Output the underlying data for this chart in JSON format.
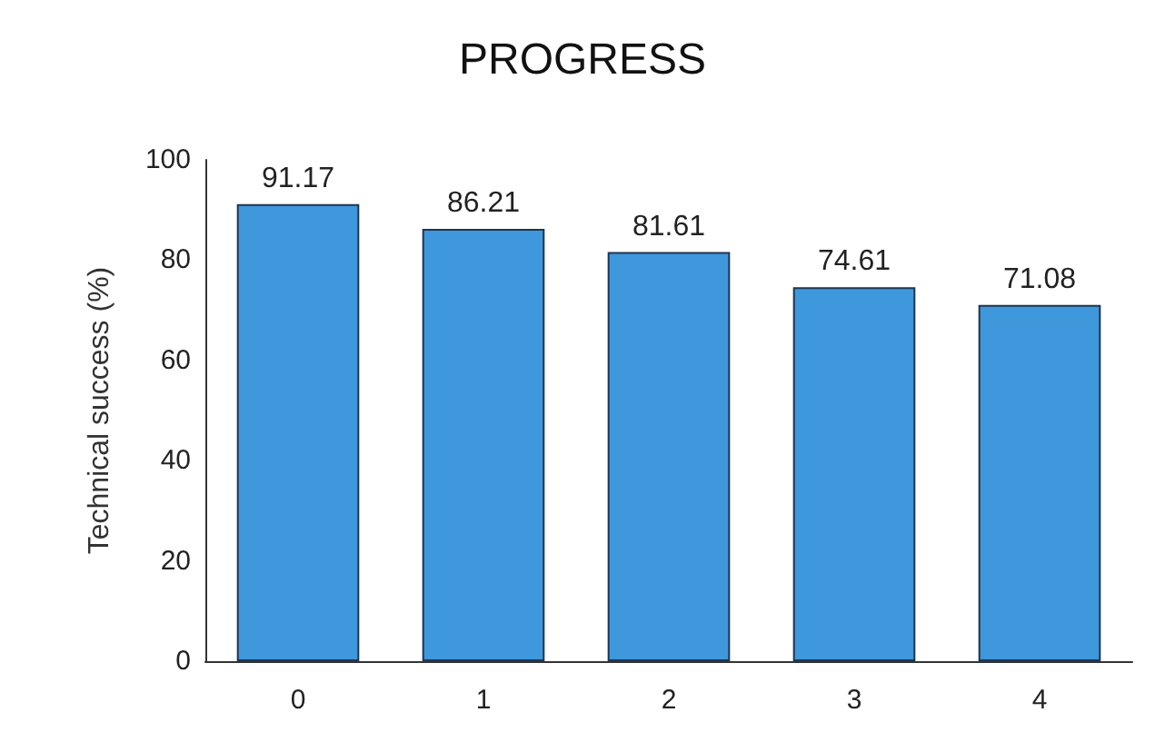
{
  "chart_data": {
    "type": "bar",
    "title": "PROGRESS",
    "ylabel": "Technical success (%)",
    "categories": [
      "0",
      "1",
      "2",
      "3",
      "4"
    ],
    "values": [
      91.17,
      86.21,
      81.61,
      74.61,
      71.08
    ],
    "color": "#3f97dc",
    "ylim": [
      0,
      100
    ],
    "yticks": [
      0,
      20,
      40,
      60,
      80,
      100
    ],
    "grid": false,
    "data_labels": true
  }
}
